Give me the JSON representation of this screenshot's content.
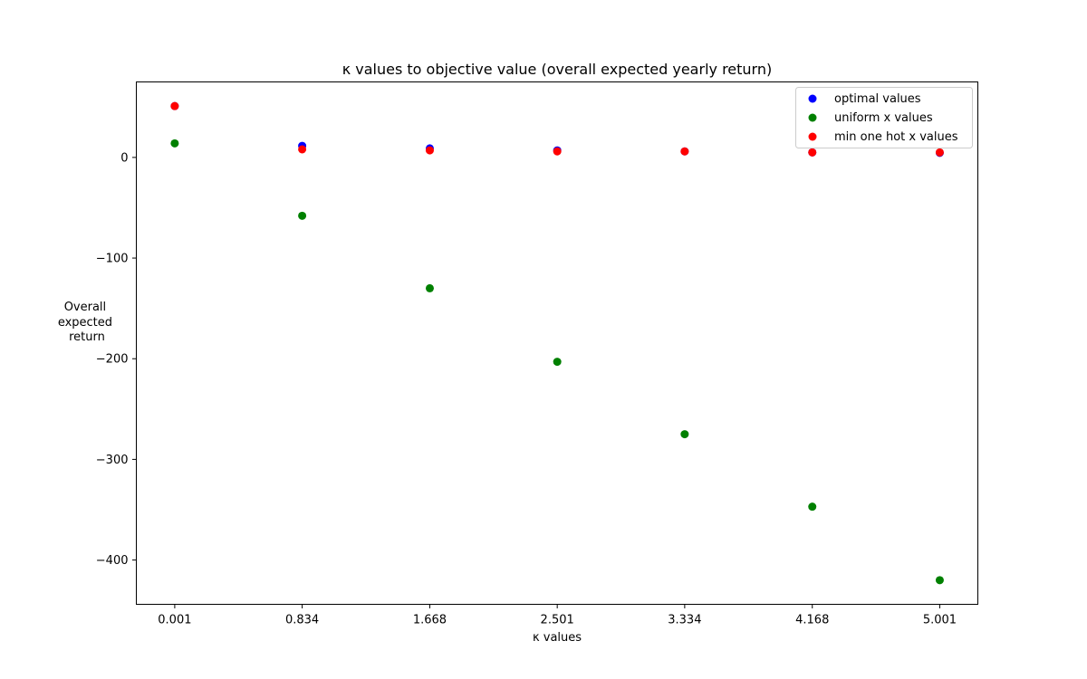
{
  "chart_data": {
    "type": "scatter",
    "title": "κ values to objective value (overall expected yearly return)",
    "xlabel": "κ values",
    "ylabel": [
      "Overall",
      "expected",
      "return"
    ],
    "x": [
      0.001,
      0.834,
      1.668,
      2.501,
      3.334,
      4.168,
      5.001
    ],
    "x_tick_labels": [
      "0.001",
      "0.834",
      "1.668",
      "2.501",
      "3.334",
      "4.168",
      "5.001"
    ],
    "xlim": [
      -0.25,
      5.25
    ],
    "ylim": [
      -444,
      75
    ],
    "y_ticks": [
      0,
      -100,
      -200,
      -300,
      -400
    ],
    "y_tick_labels": [
      "0",
      "−100",
      "−200",
      "−300",
      "−400"
    ],
    "grid": false,
    "legend_position": "top-right",
    "series": [
      {
        "name": "optimal values",
        "color": "#0000ff",
        "values": [
          51,
          11.5,
          9,
          7,
          6,
          5,
          4.5
        ]
      },
      {
        "name": "uniform x values",
        "color": "#008000",
        "values": [
          14,
          -58,
          -130,
          -203,
          -275,
          -347,
          -420
        ]
      },
      {
        "name": "min one hot x values",
        "color": "#ff0000",
        "values": [
          51,
          8,
          7,
          6,
          6,
          5,
          5
        ]
      }
    ]
  }
}
